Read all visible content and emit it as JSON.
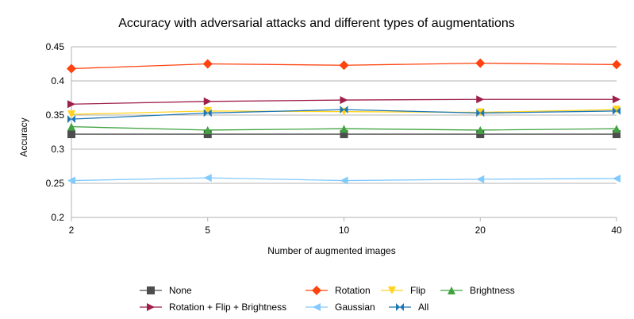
{
  "chart_data": {
    "type": "line",
    "title": "Accuracy with adversarial attacks and different types of augmentations",
    "xlabel": "Number of augmented images",
    "ylabel": "Accuracy",
    "categories": [
      "2",
      "5",
      "10",
      "20",
      "40"
    ],
    "ylim": [
      0.2,
      0.45
    ],
    "yticks": [
      "0.2",
      "0.25",
      "0.3",
      "0.35",
      "0.4",
      "0.45"
    ],
    "grid": "horizontal",
    "legend": "bottom",
    "series": [
      {
        "name": "None",
        "values": [
          0.322,
          0.322,
          0.322,
          0.322,
          0.322
        ],
        "color": "#4d4d4d",
        "marker": "square"
      },
      {
        "name": "Rotation",
        "values": [
          0.418,
          0.425,
          0.423,
          0.426,
          0.424
        ],
        "color": "#ff420e",
        "marker": "diamond"
      },
      {
        "name": "Flip",
        "values": [
          0.351,
          0.356,
          0.355,
          0.354,
          0.358
        ],
        "color": "#ffd320",
        "marker": "triangle-down"
      },
      {
        "name": "Brightness",
        "values": [
          0.333,
          0.328,
          0.33,
          0.328,
          0.33
        ],
        "color": "#3fa33f",
        "marker": "triangle-up"
      },
      {
        "name": "Rotation + Flip + Brightness",
        "values": [
          0.366,
          0.37,
          0.372,
          0.373,
          0.373
        ],
        "color": "#9e1f4a",
        "marker": "triangle-right"
      },
      {
        "name": "Gaussian",
        "values": [
          0.254,
          0.258,
          0.254,
          0.256,
          0.257
        ],
        "color": "#83caff",
        "marker": "triangle-left"
      },
      {
        "name": "All",
        "values": [
          0.344,
          0.353,
          0.358,
          0.353,
          0.356
        ],
        "color": "#1f77b4",
        "marker": "bowtie"
      }
    ]
  }
}
